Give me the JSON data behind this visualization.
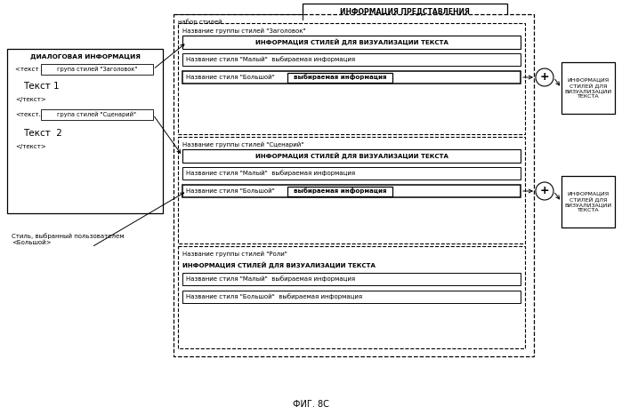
{
  "bg_color": "#ffffff",
  "fig_caption": "ФИГ. 8С",
  "title_box": "ИНФОРМАЦИЯ ПРЕДСТАВЛЕНИЯ",
  "style_set_label": "набор стилей",
  "dialog_box_title": "ДИАЛОГОВАЯ ИНФОРМАЦИЯ",
  "right_box1": "ИНФОРМАЦИЯ\nСТИЛЕЙ ДЛЯ\nВИЗУАЛИЗАЦИИ\nТЕКСТА",
  "right_box2": "ИНФОРМАЦИЯ\nСТИЛЕЙ ДЛЯ\nВИЗУАЛИЗАЦИИ\nТЕКСТА",
  "group1_label": "Название группы стилей \"Заголовок\"",
  "group1_info": "ИНФОРМАЦИЯ СТИЛЕЙ ДЛЯ ВИЗУАЛИЗАЦИИ ТЕКСТА",
  "group1_style1": "Название стиля \"Малый\"  выбираемая информация",
  "group1_style2_prefix": "Название стиля \"Большой\"",
  "group1_style2_bold": "выбираемая информация",
  "group2_label": "Название группы стилей \"Сценарий\"",
  "group2_info": "ИНФОРМАЦИЯ СТИЛЕЙ ДЛЯ ВИЗУАЛИЗАЦИИ ТЕКСТА",
  "group2_style1": "Название стиля \"Малый\"  выбираемая информация",
  "group2_style2_prefix": "Название стиля \"Большой\"",
  "group2_style2_bold": "выбираемая информация",
  "group3_label": "Название группы стилей \"Роли\"",
  "group3_info": "ИНФОРМАЦИЯ СТИЛЕЙ ДЛЯ ВИЗУАЛИЗАЦИИ ТЕКСТА",
  "group3_style1": "Название стиля \"Малый\"  выбираемая информация",
  "group3_style2": "Название стиля \"Большой\"  выбираемая информация",
  "user_style_label": "Стиль, выбранный пользователем\n<Большой>",
  "dlg_grp1_label": "група стилей \"Заголовок\"",
  "dlg_grp2_label": "група стилей \"Сценарий\"",
  "fs": 5.0,
  "fs_bold": 5.2,
  "fs_title": 5.5,
  "fs_caption": 7.0
}
